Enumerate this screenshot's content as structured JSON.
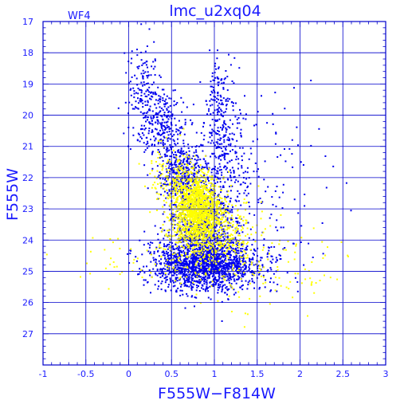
{
  "chart_data": {
    "type": "scatter",
    "title": "lmc_u2xq04",
    "subtitle": "WF4",
    "xlabel": "F555W−F814W",
    "ylabel": "F555W",
    "xlim": [
      -1,
      3
    ],
    "ylim": [
      28,
      17
    ],
    "y_inverted": true,
    "grid": true,
    "x_ticks": [
      "-1",
      "-0.5",
      "0",
      "0.5",
      "1",
      "1.5",
      "2",
      "2.5",
      "3"
    ],
    "y_ticks": [
      "17",
      "18",
      "19",
      "20",
      "21",
      "22",
      "23",
      "24",
      "25",
      "26",
      "27"
    ],
    "colors": {
      "axis": "#0000cc",
      "text": "#1a1aff",
      "series_blue": "#0000ee",
      "series_yellow": "#ffff00"
    },
    "series": [
      {
        "color": "blue",
        "components": [
          {
            "cx": 0.9,
            "cy": 24.8,
            "sx": 0.32,
            "sy": 0.4,
            "n": 1500
          },
          {
            "cx": 0.85,
            "cy": 23.5,
            "sx": 0.2,
            "sy": 0.75,
            "n": 900
          },
          {
            "cx": 0.62,
            "cy": 21.8,
            "sx": 0.13,
            "sy": 0.45,
            "n": 350
          },
          {
            "cx": 0.35,
            "cy": 20.3,
            "sx": 0.15,
            "sy": 0.55,
            "n": 280
          },
          {
            "cx": 0.18,
            "cy": 19.0,
            "sx": 0.1,
            "sy": 0.7,
            "n": 120
          },
          {
            "cx": 1.1,
            "cy": 21.0,
            "sx": 0.13,
            "sy": 0.9,
            "n": 260
          },
          {
            "cx": 1.05,
            "cy": 19.3,
            "sx": 0.08,
            "sy": 0.5,
            "n": 90
          },
          {
            "cx": 1.5,
            "cy": 22.5,
            "sx": 0.4,
            "sy": 1.6,
            "n": 160
          }
        ]
      },
      {
        "color": "yellow",
        "components": [
          {
            "cx": 0.8,
            "cy": 23.0,
            "sx": 0.13,
            "sy": 0.55,
            "n": 1200
          },
          {
            "cx": 0.95,
            "cy": 23.8,
            "sx": 0.25,
            "sy": 0.6,
            "n": 500
          },
          {
            "cx": 0.55,
            "cy": 22.0,
            "sx": 0.15,
            "sy": 0.5,
            "n": 180
          },
          {
            "cx": 1.6,
            "cy": 24.8,
            "sx": 0.6,
            "sy": 0.6,
            "n": 120
          },
          {
            "cx": 0.3,
            "cy": 24.6,
            "sx": 0.5,
            "sy": 0.45,
            "n": 70
          }
        ]
      }
    ]
  }
}
